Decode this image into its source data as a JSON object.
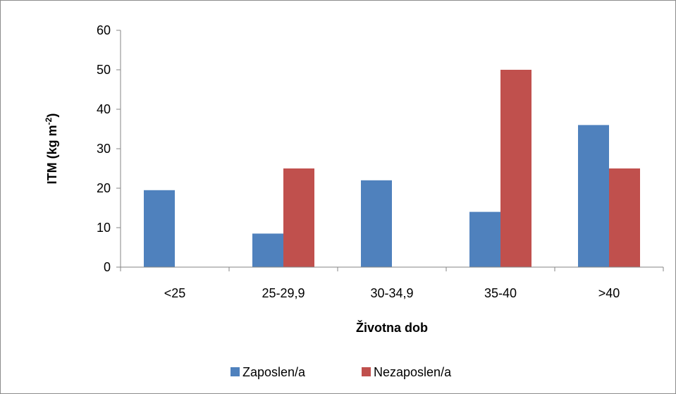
{
  "chart_data": {
    "type": "bar",
    "categories": [
      "<25",
      "25-29,9",
      "30-34,9",
      "35-40",
      ">40"
    ],
    "series": [
      {
        "name": "Zaposlen/a",
        "values": [
          19.5,
          8.5,
          22,
          14,
          36
        ],
        "color": "#4f81bd"
      },
      {
        "name": "Nezaposlen/a",
        "values": [
          0,
          25,
          0,
          50,
          25
        ],
        "color": "#c0504d"
      }
    ],
    "xlabel": "Životna dob",
    "ylabel_main": "ITM (kg m",
    "ylabel_sup": "-2",
    "ylabel_end": ")",
    "ylim": [
      0,
      60
    ],
    "yticks": [
      "0",
      "10",
      "20",
      "30",
      "40",
      "50",
      "60"
    ],
    "grid": false,
    "legend_position": "bottom"
  }
}
